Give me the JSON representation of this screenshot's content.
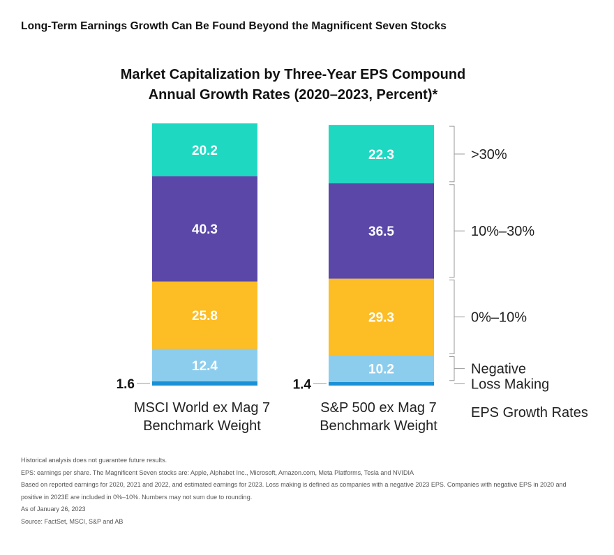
{
  "page_title": "Long-Term Earnings Growth Can Be Found Beyond the Magnificent Seven Stocks",
  "chart_data": {
    "type": "bar",
    "stacked": true,
    "title_lines": [
      "Market Capitalization by Three-Year EPS Compound",
      "Annual Growth Rates (2020–2023, Percent)*"
    ],
    "categories": [
      [
        "MSCI World ex Mag 7",
        "Benchmark Weight"
      ],
      [
        "S&P 500 ex Mag 7",
        "Benchmark Weight"
      ]
    ],
    "series": [
      {
        "name": "Loss Making",
        "values": [
          1.6,
          1.4
        ],
        "color": "#1a91d6",
        "labels": [
          "1.6",
          "1.4"
        ]
      },
      {
        "name": "Negative",
        "values": [
          12.4,
          10.2
        ],
        "color": "#8ccdee",
        "labels": [
          "12.4",
          "10.2"
        ]
      },
      {
        "name": "0%–10%",
        "values": [
          25.8,
          29.3
        ],
        "color": "#fdbd24",
        "labels": [
          "25.8",
          "29.3"
        ]
      },
      {
        "name": "10%–30%",
        "values": [
          40.3,
          36.5
        ],
        "color": "#5a47a7",
        "labels": [
          "40.3",
          "36.5"
        ]
      },
      {
        "name": ">30%",
        "values": [
          20.2,
          22.3
        ],
        "color": "#1fd8c2",
        "labels": [
          "20.2",
          "22.3"
        ]
      }
    ],
    "legend_title": "EPS Growth Rates",
    "legend_placement": "right",
    "ylim": [
      0,
      100
    ],
    "grid": false
  },
  "notes": [
    "Historical analysis does not guarantee future results.",
    "EPS: earnings per share. The Magnificent Seven stocks are: Apple, Alphabet Inc., Microsoft, Amazon.com, Meta Platforms, Tesla and NVIDIA",
    "Based on reported earnings for 2020, 2021 and 2022, and estimated earnings for 2023. Loss making is defined as companies with a negative 2023 EPS. Companies with negative EPS in 2020 and",
    "positive in 2023E are included in 0%–10%. Numbers may not sum due to rounding.",
    "As of January 26, 2023",
    "Source: FactSet, MSCI, S&P and AB"
  ]
}
